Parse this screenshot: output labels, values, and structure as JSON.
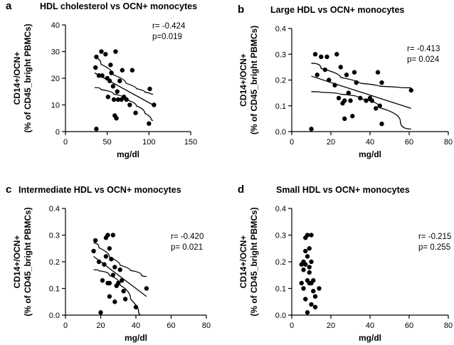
{
  "figure": {
    "description_panels": [
      "a",
      "b",
      "c",
      "d"
    ]
  },
  "chart_data": [
    {
      "type": "scatter",
      "panel_letter": "a",
      "title": "HDL cholesterol vs OCN+ monocytes",
      "xlabel": "mg/dl",
      "ylabel_line1": "CD14+/OCN+",
      "ylabel_line2": "(% of CD45_bright PBMCs)",
      "xlim": [
        0,
        150
      ],
      "ylim": [
        0,
        40
      ],
      "xticks": [
        0,
        50,
        100,
        150
      ],
      "yticks": [
        0,
        10,
        20,
        30,
        40
      ],
      "yticks_text": [
        "0",
        "10",
        "20",
        "30",
        "40"
      ],
      "stats": {
        "r": "r= -0.424",
        "p": "p=0.019"
      },
      "points": [
        {
          "x": 36,
          "y": 24
        },
        {
          "x": 37,
          "y": 28
        },
        {
          "x": 37,
          "y": 1
        },
        {
          "x": 40,
          "y": 21
        },
        {
          "x": 43,
          "y": 30
        },
        {
          "x": 44,
          "y": 21
        },
        {
          "x": 48,
          "y": 29
        },
        {
          "x": 50,
          "y": 20
        },
        {
          "x": 51,
          "y": 13
        },
        {
          "x": 53,
          "y": 19
        },
        {
          "x": 54,
          "y": 25
        },
        {
          "x": 55,
          "y": 22
        },
        {
          "x": 57,
          "y": 17
        },
        {
          "x": 58,
          "y": 12
        },
        {
          "x": 59,
          "y": 6
        },
        {
          "x": 60,
          "y": 30
        },
        {
          "x": 61,
          "y": 5
        },
        {
          "x": 62,
          "y": 15
        },
        {
          "x": 63,
          "y": 12
        },
        {
          "x": 65,
          "y": 19
        },
        {
          "x": 67,
          "y": 12
        },
        {
          "x": 68,
          "y": 23
        },
        {
          "x": 70,
          "y": 13
        },
        {
          "x": 73,
          "y": 12
        },
        {
          "x": 77,
          "y": 10
        },
        {
          "x": 80,
          "y": 23
        },
        {
          "x": 84,
          "y": 7
        },
        {
          "x": 100,
          "y": 3
        },
        {
          "x": 101,
          "y": 16
        },
        {
          "x": 106,
          "y": 10
        }
      ],
      "fit": {
        "x": [
          35,
          105
        ],
        "y": [
          22,
          10
        ]
      },
      "ci_upper": {
        "x": [
          35,
          50,
          65,
          80,
          90,
          100,
          105
        ],
        "y": [
          27.5,
          23,
          19.5,
          16.8,
          15.4,
          14.3,
          14
        ]
      },
      "ci_lower": {
        "x": [
          35,
          50,
          65,
          80,
          90,
          100,
          105
        ],
        "y": [
          16.5,
          15,
          13.2,
          10.8,
          8.4,
          5.5,
          4.2
        ]
      }
    },
    {
      "type": "scatter",
      "panel_letter": "b",
      "title": "Large HDL vs OCN+ monocytes",
      "xlabel": "mg/dl",
      "ylabel_line1": "CD14+/OCN+",
      "ylabel_line2": "(% of CD45_bright PBMCs)",
      "xlim": [
        0,
        80
      ],
      "ylim": [
        0,
        0.4
      ],
      "xticks": [
        0,
        20,
        40,
        60,
        80
      ],
      "yticks": [
        0,
        0.1,
        0.2,
        0.3,
        0.4
      ],
      "yticks_text": [
        "0.0",
        "0.1",
        "0.2",
        "0.3",
        "0.4"
      ],
      "stats": {
        "r": "r= -0.413",
        "p": "p= 0.024"
      },
      "points": [
        {
          "x": 10,
          "y": 0.01
        },
        {
          "x": 12,
          "y": 0.3
        },
        {
          "x": 13,
          "y": 0.22
        },
        {
          "x": 15,
          "y": 0.29
        },
        {
          "x": 17,
          "y": 0.24
        },
        {
          "x": 18,
          "y": 0.29
        },
        {
          "x": 19,
          "y": 0.2
        },
        {
          "x": 22,
          "y": 0.18
        },
        {
          "x": 23,
          "y": 0.3
        },
        {
          "x": 24,
          "y": 0.13
        },
        {
          "x": 25,
          "y": 0.25
        },
        {
          "x": 26,
          "y": 0.11
        },
        {
          "x": 27,
          "y": 0.12
        },
        {
          "x": 28,
          "y": 0.22
        },
        {
          "x": 29,
          "y": 0.15
        },
        {
          "x": 30,
          "y": 0.12
        },
        {
          "x": 31,
          "y": 0.06
        },
        {
          "x": 32,
          "y": 0.23
        },
        {
          "x": 33,
          "y": 0.19
        },
        {
          "x": 35,
          "y": 0.13
        },
        {
          "x": 38,
          "y": 0.12
        },
        {
          "x": 40,
          "y": 0.13
        },
        {
          "x": 41,
          "y": 0.12
        },
        {
          "x": 43,
          "y": 0.09
        },
        {
          "x": 44,
          "y": 0.23
        },
        {
          "x": 45,
          "y": 0.1
        },
        {
          "x": 46,
          "y": 0.19
        },
        {
          "x": 46,
          "y": 0.03
        },
        {
          "x": 61,
          "y": 0.16
        },
        {
          "x": 27,
          "y": 0.05
        }
      ],
      "fit": {
        "x": [
          10,
          61
        ],
        "y": [
          0.215,
          0.09
        ]
      },
      "ci_upper": {
        "x": [
          10,
          20,
          30,
          40,
          50,
          61
        ],
        "y": [
          0.265,
          0.225,
          0.195,
          0.18,
          0.172,
          0.17
        ]
      },
      "ci_lower": {
        "x": [
          10,
          20,
          30,
          40,
          50,
          61
        ],
        "y": [
          0.155,
          0.15,
          0.14,
          0.115,
          0.07,
          0.01
        ]
      }
    },
    {
      "type": "scatter",
      "panel_letter": "c",
      "title": "Intermediate HDL vs OCN+ monocytes",
      "xlabel": "mg/dl",
      "ylabel_line1": "CD14+/OCN+",
      "ylabel_line2": "(% of CD45_bright PBMCs)",
      "xlim": [
        0,
        80
      ],
      "ylim": [
        0,
        0.4
      ],
      "xticks": [
        0,
        20,
        40,
        60,
        80
      ],
      "yticks": [
        0,
        0.1,
        0.2,
        0.3,
        0.4
      ],
      "yticks_text": [
        "0.0",
        "0.1",
        "0.2",
        "0.3",
        "0.4"
      ],
      "stats": {
        "r": "r= -0.420",
        "p": "p= 0.021"
      },
      "points": [
        {
          "x": 16,
          "y": 0.24
        },
        {
          "x": 17,
          "y": 0.28
        },
        {
          "x": 19,
          "y": 0.2
        },
        {
          "x": 20,
          "y": 0.01
        },
        {
          "x": 21,
          "y": 0.13
        },
        {
          "x": 22,
          "y": 0.19
        },
        {
          "x": 23,
          "y": 0.29
        },
        {
          "x": 23,
          "y": 0.22
        },
        {
          "x": 24,
          "y": 0.3
        },
        {
          "x": 24,
          "y": 0.12
        },
        {
          "x": 25,
          "y": 0.07
        },
        {
          "x": 25,
          "y": 0.12
        },
        {
          "x": 26,
          "y": 0.21
        },
        {
          "x": 27,
          "y": 0.3
        },
        {
          "x": 27,
          "y": 0.15
        },
        {
          "x": 28,
          "y": 0.05
        },
        {
          "x": 28,
          "y": 0.18
        },
        {
          "x": 29,
          "y": 0.11
        },
        {
          "x": 30,
          "y": 0.12
        },
        {
          "x": 31,
          "y": 0.17
        },
        {
          "x": 32,
          "y": 0.13
        },
        {
          "x": 33,
          "y": 0.09
        },
        {
          "x": 34,
          "y": 0.06
        },
        {
          "x": 40,
          "y": 0.03
        },
        {
          "x": 46,
          "y": 0.1
        },
        {
          "x": 25,
          "y": 0.25
        }
      ],
      "fit": {
        "x": [
          16,
          46
        ],
        "y": [
          0.22,
          0.07
        ]
      },
      "ci_upper": {
        "x": [
          16,
          22,
          28,
          34,
          40,
          46
        ],
        "y": [
          0.27,
          0.235,
          0.2,
          0.175,
          0.16,
          0.145
        ]
      },
      "ci_lower": {
        "x": [
          16,
          22,
          28,
          34,
          40,
          43
        ],
        "y": [
          0.17,
          0.162,
          0.135,
          0.09,
          0.03,
          0.0
        ]
      }
    },
    {
      "type": "scatter",
      "panel_letter": "d",
      "title": "Small HDL vs OCN+ monocytes",
      "xlabel": "mg/dl",
      "ylabel_line1": "CD14+/OCN+",
      "ylabel_line2": "(% of CD45_bright PBMCs)",
      "xlim": [
        0,
        80
      ],
      "ylim": [
        0,
        0.4
      ],
      "xticks": [
        0,
        20,
        40,
        60,
        80
      ],
      "yticks": [
        0,
        0.1,
        0.2,
        0.3,
        0.4
      ],
      "yticks_text": [
        "0.0",
        "0.1",
        "0.2",
        "0.3",
        "0.4"
      ],
      "stats": {
        "r": "r= -0.215",
        "p": "p= 0.255"
      },
      "points": [
        {
          "x": 5,
          "y": 0.19
        },
        {
          "x": 5,
          "y": 0.12
        },
        {
          "x": 6,
          "y": 0.2
        },
        {
          "x": 6,
          "y": 0.17
        },
        {
          "x": 6,
          "y": 0.1
        },
        {
          "x": 7,
          "y": 0.29
        },
        {
          "x": 7,
          "y": 0.19
        },
        {
          "x": 7,
          "y": 0.06
        },
        {
          "x": 7,
          "y": 0.24
        },
        {
          "x": 8,
          "y": 0.3
        },
        {
          "x": 8,
          "y": 0.22
        },
        {
          "x": 8,
          "y": 0.13
        },
        {
          "x": 8,
          "y": 0.01
        },
        {
          "x": 9,
          "y": 0.16
        },
        {
          "x": 9,
          "y": 0.12
        },
        {
          "x": 9,
          "y": 0.25
        },
        {
          "x": 10,
          "y": 0.3
        },
        {
          "x": 10,
          "y": 0.2
        },
        {
          "x": 10,
          "y": 0.12
        },
        {
          "x": 10,
          "y": 0.04
        },
        {
          "x": 11,
          "y": 0.13
        },
        {
          "x": 11,
          "y": 0.09
        },
        {
          "x": 12,
          "y": 0.07
        },
        {
          "x": 12,
          "y": 0.03
        },
        {
          "x": 14,
          "y": 0.1
        },
        {
          "x": 9,
          "y": 0.18
        }
      ]
    }
  ]
}
